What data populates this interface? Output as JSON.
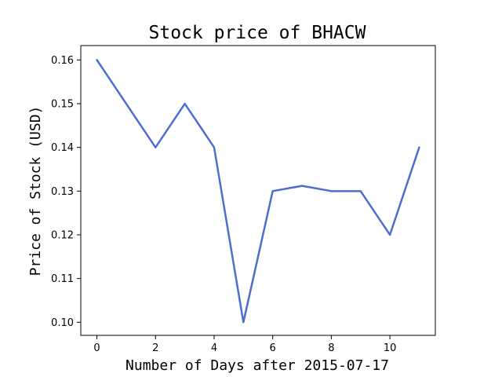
{
  "chart_data": {
    "type": "line",
    "title": "Stock price of BHACW",
    "xlabel": "Number of Days after 2015-07-17",
    "ylabel": "Price of Stock (USD)",
    "xlim": [
      -0.55,
      11.55
    ],
    "ylim": [
      0.097,
      0.1633
    ],
    "xticks": [
      0,
      2,
      4,
      6,
      8,
      10
    ],
    "yticks": [
      0.1,
      0.11,
      0.12,
      0.13,
      0.14,
      0.15,
      0.16
    ],
    "grid": false,
    "legend": "none",
    "series": [
      {
        "color": "#4c6fcc",
        "x": [
          0,
          1,
          2,
          3,
          4,
          5,
          6,
          7,
          8,
          9,
          10,
          11
        ],
        "y": [
          0.16,
          0.15,
          0.14,
          0.15,
          0.14,
          0.1,
          0.13,
          0.1312,
          0.13,
          0.13,
          0.12,
          0.14
        ]
      }
    ]
  }
}
